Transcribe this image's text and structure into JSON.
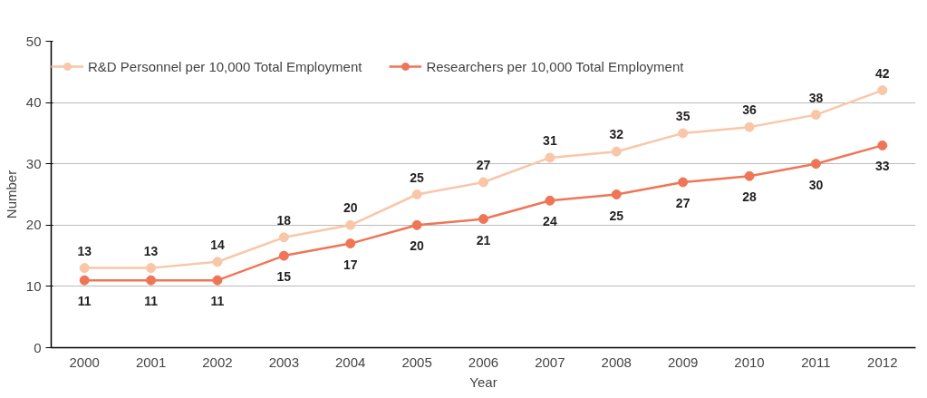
{
  "chart_data": {
    "type": "line",
    "xlabel": "Year",
    "ylabel": "Number",
    "categories": [
      "2000",
      "2001",
      "2002",
      "2003",
      "2004",
      "2005",
      "2006",
      "2007",
      "2008",
      "2009",
      "2010",
      "2011",
      "2012"
    ],
    "series": [
      {
        "name": "R&D Personnel per 10,000 Total Employment",
        "color": "#f9c6a8",
        "values": [
          13,
          13,
          14,
          18,
          20,
          25,
          27,
          31,
          32,
          35,
          36,
          38,
          42
        ]
      },
      {
        "name": "Researchers per 10,000 Total Employment",
        "color": "#ee7656",
        "values": [
          11,
          11,
          11,
          15,
          17,
          20,
          21,
          24,
          25,
          27,
          28,
          30,
          33
        ]
      }
    ],
    "ylim": [
      0,
      50
    ],
    "yticks": [
      0,
      10,
      20,
      30,
      40,
      50
    ],
    "grid": "y",
    "legend": "top",
    "marker": "circle",
    "line_style": "solid",
    "data_labels": true
  }
}
